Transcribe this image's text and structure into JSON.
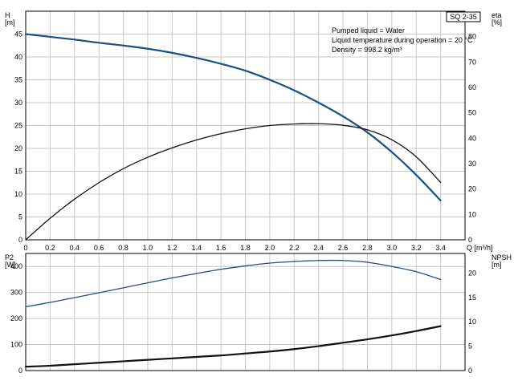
{
  "chart_data": [
    {
      "type": "line",
      "name": "head-efficiency-curve",
      "badge": "SQ 2-35",
      "info": [
        "Pumped liquid = Water",
        "Liquid temperature during operation = 20 °C",
        "Density = 998.2 kg/m³"
      ],
      "xlabel": "Q [m³/h]",
      "x_ticks": [
        "0",
        "0.2",
        "0.4",
        "0.6",
        "0.8",
        "1.0",
        "1.2",
        "1.4",
        "1.6",
        "1.8",
        "2.0",
        "2.2",
        "2.4",
        "2.6",
        "2.8",
        "3.0",
        "3.2",
        "3.4"
      ],
      "xlim": [
        0,
        3.6
      ],
      "left_axis": {
        "label": [
          "H",
          "[m]"
        ],
        "ticks": [
          "0",
          "5",
          "10",
          "15",
          "20",
          "25",
          "30",
          "35",
          "40",
          "45"
        ],
        "lim": [
          0,
          50
        ]
      },
      "right_axis": {
        "label": [
          "eta",
          "[%]"
        ],
        "ticks": [
          "0",
          "10",
          "20",
          "30",
          "40",
          "50",
          "60",
          "70",
          "80"
        ],
        "lim": [
          0,
          90
        ]
      },
      "grid": true,
      "series": [
        {
          "axis": "left",
          "color": "#1a4f8a",
          "width": 2.2,
          "x": [
            0,
            0.2,
            0.4,
            0.6,
            0.8,
            1.0,
            1.2,
            1.4,
            1.6,
            1.8,
            2.0,
            2.2,
            2.4,
            2.6,
            2.8,
            3.0,
            3.2,
            3.4
          ],
          "y": [
            45.0,
            44.4,
            43.8,
            43.1,
            42.5,
            41.8,
            40.9,
            39.8,
            38.5,
            37.0,
            35.0,
            32.7,
            30.0,
            27.0,
            23.5,
            19.2,
            14.2,
            8.6
          ]
        },
        {
          "axis": "right",
          "color": "#111111",
          "width": 1.3,
          "x": [
            0,
            0.2,
            0.4,
            0.6,
            0.8,
            1.0,
            1.2,
            1.4,
            1.6,
            1.8,
            2.0,
            2.2,
            2.4,
            2.6,
            2.8,
            3.0,
            3.2,
            3.4
          ],
          "y": [
            0,
            8.5,
            16.0,
            22.5,
            28.0,
            32.5,
            36.2,
            39.3,
            41.8,
            43.7,
            45.0,
            45.6,
            45.7,
            45.1,
            43.3,
            39.4,
            32.7,
            22.6
          ]
        }
      ]
    },
    {
      "type": "line",
      "name": "power-npsh-curve",
      "xlim": [
        0,
        3.6
      ],
      "left_axis": {
        "label": [
          "P2",
          "[W]"
        ],
        "ticks": [
          "0",
          "100",
          "200",
          "300",
          "400"
        ],
        "lim": [
          0,
          450
        ]
      },
      "right_axis": {
        "label": [
          "NPSH",
          "[m]"
        ],
        "ticks": [
          "0",
          "5",
          "10",
          "15",
          "20"
        ],
        "lim": [
          0,
          24
        ]
      },
      "grid": true,
      "series": [
        {
          "axis": "left",
          "color": "#1a4f8a",
          "width": 1.3,
          "x": [
            0,
            0.2,
            0.4,
            0.6,
            0.8,
            1.0,
            1.2,
            1.4,
            1.6,
            1.8,
            2.0,
            2.2,
            2.4,
            2.6,
            2.8,
            3.0,
            3.2,
            3.4
          ],
          "y": [
            245,
            262,
            280,
            299,
            318,
            337,
            356,
            373,
            389,
            402,
            413,
            419,
            423,
            423,
            416,
            400,
            380,
            350
          ]
        },
        {
          "axis": "right",
          "color": "#111111",
          "width": 2.2,
          "x": [
            0,
            0.2,
            0.4,
            0.6,
            0.8,
            1.0,
            1.2,
            1.4,
            1.6,
            1.8,
            2.0,
            2.2,
            2.4,
            2.6,
            2.8,
            3.0,
            3.2,
            3.4
          ],
          "y": [
            0.8,
            1.0,
            1.3,
            1.6,
            1.9,
            2.2,
            2.5,
            2.8,
            3.1,
            3.5,
            3.9,
            4.4,
            5.0,
            5.7,
            6.4,
            7.2,
            8.1,
            9.1
          ]
        }
      ]
    }
  ]
}
